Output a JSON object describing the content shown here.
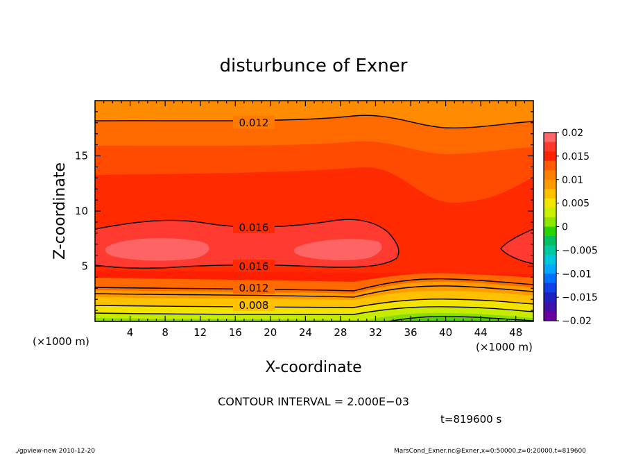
{
  "chart_data": {
    "type": "heatmap",
    "subtype": "filled-contour",
    "title": "disturbunce of Exner",
    "xlabel": "X-coordinate",
    "ylabel": "Z-coordinate",
    "x_unit_left": "(×1000 m)",
    "x_unit_right": "(×1000 m)",
    "xlim": [
      0,
      50
    ],
    "ylim": [
      0,
      20
    ],
    "x_ticks": [
      "4",
      "8",
      "12",
      "16",
      "20",
      "24",
      "28",
      "32",
      "36",
      "40",
      "44",
      "48"
    ],
    "x_tick_values": [
      4,
      8,
      12,
      16,
      20,
      24,
      28,
      32,
      36,
      40,
      44,
      48
    ],
    "y_ticks": [
      "5",
      "10",
      "15"
    ],
    "y_tick_values": [
      5,
      10,
      15
    ],
    "colorbar": {
      "labels": [
        "0.02",
        "0.015",
        "0.01",
        "0.005",
        "0",
        "−0.005",
        "−0.01",
        "−0.015",
        "−0.02"
      ],
      "values": [
        0.02,
        0.015,
        0.01,
        0.005,
        0,
        -0.005,
        -0.01,
        -0.015,
        -0.02
      ],
      "colors": [
        "#ff6868",
        "#ff3a2a",
        "#ff2200",
        "#ff5a00",
        "#ff7f00",
        "#ff9a00",
        "#ffc000",
        "#f2e600",
        "#c8f000",
        "#8ce800",
        "#2ad400",
        "#00c060",
        "#00c8a0",
        "#00c8dc",
        "#00a8ff",
        "#0070ff",
        "#1040e8",
        "#2020c0",
        "#4010a8",
        "#6a00a0"
      ]
    },
    "contour_lines": [
      {
        "label": "0.012",
        "z_profile_x": [
          0,
          10,
          20,
          30,
          36,
          40,
          44,
          50
        ],
        "z": [
          18.1,
          18.0,
          18.0,
          18.5,
          18.0,
          17.5,
          17.7,
          18.1
        ]
      },
      {
        "label": "0.016",
        "z_profile_x": [
          0,
          8,
          16,
          20,
          28,
          32,
          33.5
        ],
        "z": [
          8.3,
          9.5,
          8.6,
          8.4,
          9.3,
          8.5,
          7.0
        ]
      },
      {
        "label": "0.016",
        "z_profile_x": [
          0,
          8,
          16,
          24,
          30,
          33.5
        ],
        "z": [
          5.0,
          4.6,
          4.8,
          4.8,
          4.7,
          7.0
        ]
      },
      {
        "label": "0.012",
        "z_profile_x": [
          0,
          10,
          20,
          30,
          40,
          50
        ],
        "z": [
          3.1,
          2.9,
          3.0,
          2.7,
          3.5,
          3.1
        ]
      },
      {
        "label": "0.008",
        "z_profile_x": [
          0,
          10,
          20,
          30,
          40,
          50
        ],
        "z": [
          1.6,
          1.4,
          1.5,
          1.4,
          1.2,
          1.3
        ]
      }
    ],
    "contour_interval_text": "CONTOUR INTERVAL = 2.000E−03",
    "time_text": "t=819600  s"
  },
  "footer": {
    "left": "./gpview-new   2010-12-20",
    "right": "MarsCond_Exner.nc@Exner,x=0:50000,z=0:20000,t=819600"
  }
}
